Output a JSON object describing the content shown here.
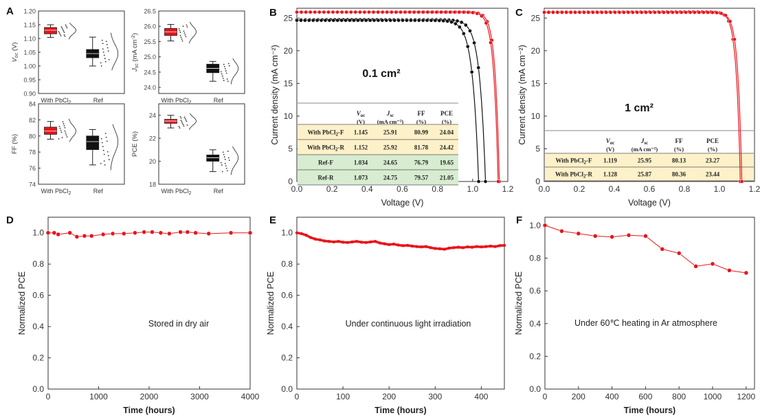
{
  "colors": {
    "red": "#e8141b",
    "black": "#111111",
    "table_yellow": "#fdf1c9",
    "table_green": "#d7ecd1"
  },
  "chart_data": [
    {
      "panel": "A",
      "type": "box",
      "subplots": [
        {
          "ylabel": "V_oc (V)",
          "ylabel_main": "V",
          "ylabel_sub": "oc",
          "ylabel_unit": " (V)",
          "ylim": [
            0.9,
            1.2
          ],
          "yticks": [
            "0.90",
            "0.95",
            "1.00",
            "1.05",
            "1.10",
            "1.15",
            "1.20"
          ],
          "categories": [
            "With PbCl2",
            "Ref"
          ],
          "boxes": [
            {
              "q1": 1.117,
              "median": 1.13,
              "q3": 1.14,
              "min": 1.104,
              "max": 1.15,
              "color": "red"
            },
            {
              "q1": 1.03,
              "median": 1.045,
              "q3": 1.06,
              "min": 1.0,
              "max": 1.105,
              "color": "black"
            }
          ]
        },
        {
          "ylabel": "J_sc (mA cm-2)",
          "ylabel_main": "J",
          "ylabel_sub": "sc",
          "ylabel_unit": " (mA cm",
          "ylabel_sup": "-2",
          "ylabel_close": ")",
          "ylim": [
            23.8,
            26.5
          ],
          "yticks": [
            "24.0",
            "24.5",
            "25.0",
            "25.5",
            "26.0",
            "26.5"
          ],
          "categories": [
            "With PbCl2",
            "Ref"
          ],
          "boxes": [
            {
              "q1": 25.7,
              "median": 25.82,
              "q3": 25.93,
              "min": 25.52,
              "max": 26.06,
              "color": "red"
            },
            {
              "q1": 24.48,
              "median": 24.62,
              "q3": 24.76,
              "min": 24.2,
              "max": 24.85,
              "color": "black"
            }
          ]
        },
        {
          "ylabel": "FF (%)",
          "ylabel_main": "FF (%)",
          "ylim": [
            74,
            84
          ],
          "yticks": [
            "74",
            "76",
            "78",
            "80",
            "82",
            "84"
          ],
          "categories": [
            "With PbCl2",
            "Ref"
          ],
          "boxes": [
            {
              "q1": 80.2,
              "median": 80.6,
              "q3": 81.1,
              "min": 79.6,
              "max": 81.8,
              "color": "red"
            },
            {
              "q1": 78.3,
              "median": 79.3,
              "q3": 80.0,
              "min": 76.4,
              "max": 80.8,
              "color": "black"
            }
          ]
        },
        {
          "ylabel": "PCE (%)",
          "ylabel_main": "PCE (%)",
          "ylim": [
            18,
            25
          ],
          "yticks": [
            "18",
            "20",
            "22",
            "24"
          ],
          "categories": [
            "With PbCl2",
            "Ref"
          ],
          "boxes": [
            {
              "q1": 23.3,
              "median": 23.5,
              "q3": 23.65,
              "min": 22.9,
              "max": 24.0,
              "color": "red"
            },
            {
              "q1": 20.0,
              "median": 20.3,
              "q3": 20.55,
              "min": 19.1,
              "max": 21.0,
              "color": "black"
            }
          ]
        }
      ],
      "category_labels": {
        "with_main": "With PbCl",
        "with_sub": "2",
        "ref": "Ref"
      }
    },
    {
      "panel": "B",
      "type": "line",
      "title": "0.1 cm²",
      "xlabel": "Voltage (V)",
      "ylabel": "Current density (mA cm⁻²)",
      "xlim": [
        0,
        1.2
      ],
      "ylim": [
        0,
        26.5
      ],
      "xticks": [
        "0.0",
        "0.2",
        "0.4",
        "0.6",
        "0.8",
        "1.0",
        "1.2"
      ],
      "yticks": [
        "0",
        "5",
        "10",
        "15",
        "20",
        "25"
      ],
      "series": [
        {
          "color": "red",
          "jsc": 25.92,
          "voc": 1.152,
          "k": 0.024
        },
        {
          "color": "red",
          "jsc": 25.91,
          "voc": 1.145,
          "k": 0.025
        },
        {
          "color": "black",
          "jsc": 24.75,
          "voc": 1.073,
          "k": 0.033
        },
        {
          "color": "black",
          "jsc": 24.65,
          "voc": 1.034,
          "k": 0.034
        }
      ],
      "table": {
        "header_units": [
          "(V)",
          "(mA cm⁻²)",
          "(%)",
          "(%)"
        ],
        "header_names": [
          "V",
          "J",
          "FF",
          "PCE"
        ],
        "header_subs": [
          "oc",
          "sc",
          "",
          ""
        ],
        "rows": [
          {
            "label_main": "With PbCl",
            "label_sub": "2",
            "label_end": "-F",
            "voc": "1.145",
            "jsc": "25.91",
            "ff": "80.99",
            "pce": "24.04",
            "fill": "yellow"
          },
          {
            "label_main": "With PbCl",
            "label_sub": "2",
            "label_end": "-R",
            "voc": "1.152",
            "jsc": "25.92",
            "ff": "81.78",
            "pce": "24.42",
            "fill": "yellow"
          },
          {
            "label_main": "Ref-F",
            "label_sub": "",
            "label_end": "",
            "voc": "1.034",
            "jsc": "24.65",
            "ff": "76.79",
            "pce": "19.65",
            "fill": "green"
          },
          {
            "label_main": "Ref-R",
            "label_sub": "",
            "label_end": "",
            "voc": "1.073",
            "jsc": "24.75",
            "ff": "79.57",
            "pce": "21.05",
            "fill": "green"
          }
        ]
      }
    },
    {
      "panel": "C",
      "type": "line",
      "title": "1 cm²",
      "xlabel": "Voltage (V)",
      "ylabel": "Current density (mA cm⁻²)",
      "xlim": [
        0,
        1.2
      ],
      "ylim": [
        0,
        26.5
      ],
      "xticks": [
        "0.0",
        "0.2",
        "0.4",
        "0.6",
        "0.8",
        "1.0",
        "1.2"
      ],
      "yticks": [
        "0",
        "5",
        "10",
        "15",
        "20",
        "25"
      ],
      "series": [
        {
          "color": "red",
          "jsc": 25.95,
          "voc": 1.119,
          "k": 0.023
        },
        {
          "color": "red",
          "jsc": 25.87,
          "voc": 1.128,
          "k": 0.023
        }
      ],
      "table": {
        "header_units": [
          "(V)",
          "(mA cm⁻²)",
          "(%)",
          "(%)"
        ],
        "header_names": [
          "V",
          "J",
          "FF",
          "PCE"
        ],
        "header_subs": [
          "oc",
          "sc",
          "",
          ""
        ],
        "rows": [
          {
            "label_main": "With PbCl",
            "label_sub": "2",
            "label_end": "-F",
            "voc": "1.119",
            "jsc": "25.95",
            "ff": "80.13",
            "pce": "23.27",
            "fill": "yellow"
          },
          {
            "label_main": "With PbCl",
            "label_sub": "2",
            "label_end": "-R",
            "voc": "1.128",
            "jsc": "25.87",
            "ff": "80.36",
            "pce": "23.44",
            "fill": "yellow"
          }
        ]
      }
    },
    {
      "panel": "D",
      "type": "line",
      "xlabel": "Time (hours)",
      "ylabel": "Normalized PCE",
      "annotation": "Stored in dry air",
      "xlim": [
        0,
        4000
      ],
      "ylim": [
        0,
        1.1
      ],
      "xticks": [
        "0",
        "1000",
        "2000",
        "3000",
        "4000"
      ],
      "yticks": [
        "0.0",
        "0.2",
        "0.4",
        "0.6",
        "0.8",
        "1.0"
      ],
      "x": [
        0,
        120,
        200,
        430,
        570,
        720,
        860,
        1090,
        1280,
        1500,
        1720,
        1900,
        2060,
        2230,
        2400,
        2620,
        2760,
        2920,
        3180,
        3620,
        4000
      ],
      "y": [
        1.0,
        1.0,
        0.99,
        1.0,
        0.975,
        0.98,
        0.98,
        0.99,
        0.995,
        0.995,
        1.0,
        1.005,
        1.005,
        1.0,
        0.995,
        1.005,
        1.005,
        1.0,
        0.995,
        1.0,
        1.0
      ]
    },
    {
      "panel": "E",
      "type": "line",
      "xlabel": "Time (hours)",
      "ylabel": "Normalized PCE",
      "annotation": "Under continuous light irradiation",
      "xlim": [
        0,
        450
      ],
      "ylim": [
        0,
        1.1
      ],
      "xticks": [
        "0",
        "100",
        "200",
        "300",
        "400"
      ],
      "yticks": [
        "0.0",
        "0.2",
        "0.4",
        "0.6",
        "0.8",
        "1.0"
      ],
      "x": [
        0,
        10,
        20,
        30,
        40,
        50,
        60,
        70,
        80,
        90,
        100,
        110,
        120,
        130,
        140,
        150,
        160,
        170,
        180,
        190,
        200,
        210,
        220,
        230,
        240,
        250,
        260,
        270,
        280,
        290,
        300,
        310,
        320,
        330,
        340,
        350,
        360,
        370,
        380,
        390,
        400,
        410,
        420,
        430,
        440,
        450
      ],
      "y": [
        1.0,
        0.995,
        0.985,
        0.97,
        0.96,
        0.955,
        0.948,
        0.945,
        0.942,
        0.945,
        0.94,
        0.938,
        0.942,
        0.945,
        0.94,
        0.938,
        0.942,
        0.945,
        0.935,
        0.93,
        0.925,
        0.928,
        0.922,
        0.918,
        0.92,
        0.915,
        0.912,
        0.91,
        0.912,
        0.905,
        0.9,
        0.898,
        0.895,
        0.902,
        0.905,
        0.908,
        0.905,
        0.91,
        0.908,
        0.912,
        0.91,
        0.912,
        0.915,
        0.912,
        0.918,
        0.92
      ]
    },
    {
      "panel": "F",
      "type": "line",
      "xlabel": "Time (hours)",
      "ylabel": "Normalized PCE",
      "annotation": "Under 60℃ heating in Ar atmosphere",
      "xlim": [
        0,
        1250
      ],
      "ylim": [
        0,
        1.05
      ],
      "xticks": [
        "0",
        "200",
        "400",
        "600",
        "800",
        "1000",
        "1200"
      ],
      "yticks": [
        "0.0",
        "0.2",
        "0.4",
        "0.6",
        "0.8",
        "1.0"
      ],
      "x": [
        0,
        100,
        200,
        300,
        400,
        500,
        600,
        700,
        800,
        900,
        1000,
        1100,
        1200
      ],
      "y": [
        1.0,
        0.965,
        0.95,
        0.935,
        0.93,
        0.94,
        0.935,
        0.855,
        0.83,
        0.75,
        0.765,
        0.725,
        0.71
      ]
    }
  ]
}
